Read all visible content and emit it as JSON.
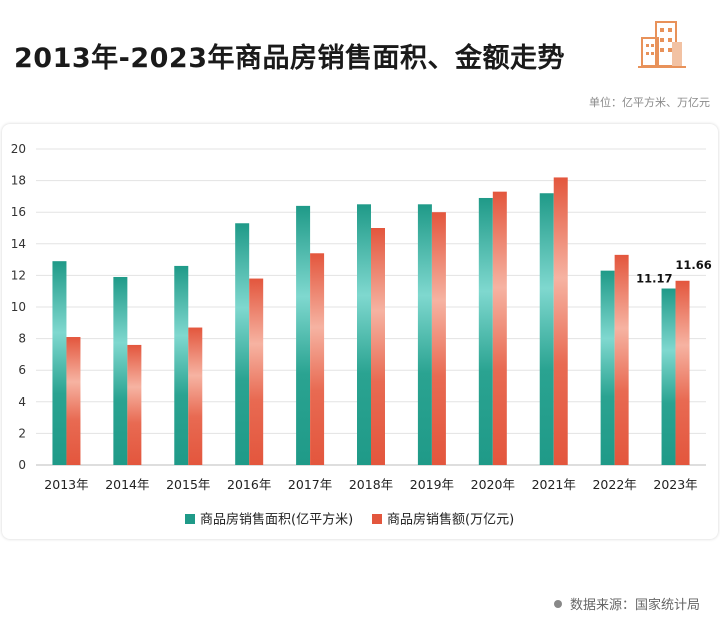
{
  "header": {
    "title": "2013年-2023年商品房销售面积、金额走势",
    "unit": "单位：亿平方米、万亿元",
    "logo_icon": "building-icon"
  },
  "footer": {
    "source": "数据来源：国家统计局"
  },
  "colors": {
    "area": "#1f9a88",
    "area_light": "#7fd8cf",
    "amount": "#e3563d",
    "amount_light": "#f6b3a2"
  },
  "chart_data": {
    "type": "bar",
    "categories": [
      "2013年",
      "2014年",
      "2015年",
      "2016年",
      "2017年",
      "2018年",
      "2019年",
      "2020年",
      "2021年",
      "2022年",
      "2023年"
    ],
    "series": [
      {
        "name": "商品房销售面积(亿平方米)",
        "values": [
          12.9,
          11.9,
          12.6,
          15.3,
          16.4,
          16.5,
          16.5,
          16.9,
          17.2,
          12.3,
          11.17
        ]
      },
      {
        "name": "商品房销售额(万亿元)",
        "values": [
          8.1,
          7.6,
          8.7,
          11.8,
          13.4,
          15.0,
          16.0,
          17.3,
          18.2,
          13.3,
          11.66
        ]
      }
    ],
    "data_labels": {
      "series0_last": "11.17",
      "series1_last": "11.66"
    },
    "yticks": [
      "0",
      "2",
      "4",
      "6",
      "8",
      "10",
      "12",
      "14",
      "16",
      "18",
      "20"
    ],
    "ylim": [
      0,
      20
    ],
    "grid": true,
    "legend": "bottom"
  }
}
